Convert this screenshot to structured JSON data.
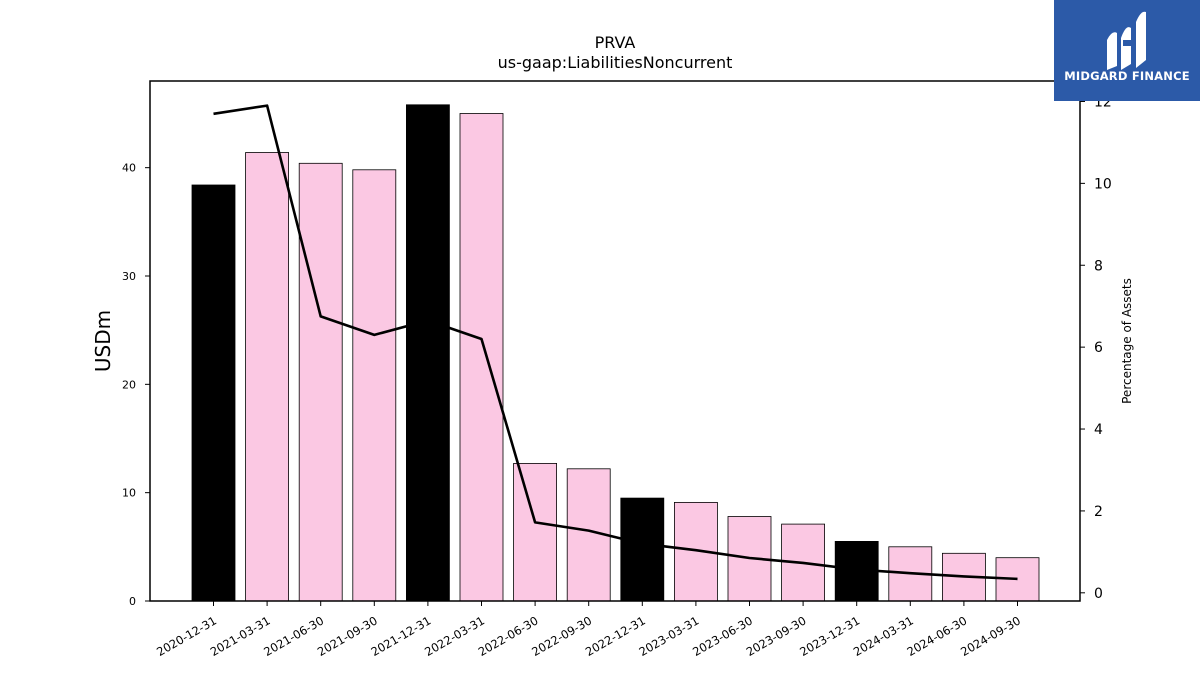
{
  "brand": {
    "name": "MIDGARD FINANCE",
    "bg_color": "#2c5aa8"
  },
  "chart_data": {
    "type": "bar",
    "title": "PRVA",
    "subtitle": "us-gaap:LiabilitiesNoncurrent",
    "ylabel": "USDm",
    "y2label": "Percentage of Assets",
    "categories": [
      "2020-12-31",
      "2021-03-31",
      "2021-06-30",
      "2021-09-30",
      "2021-12-31",
      "2022-03-31",
      "2022-06-30",
      "2022-09-30",
      "2022-12-31",
      "2023-03-31",
      "2023-06-30",
      "2023-09-30",
      "2023-12-31",
      "2024-03-31",
      "2024-06-30",
      "2024-09-30"
    ],
    "series": [
      {
        "kind": "bar",
        "axis": "left",
        "values": [
          38.4,
          41.4,
          40.4,
          39.8,
          45.8,
          45.0,
          12.7,
          12.2,
          9.5,
          9.1,
          7.8,
          7.1,
          5.5,
          5.0,
          4.4,
          4.0
        ],
        "colors": [
          "#000000",
          "#fbc8e3",
          "#fbc8e3",
          "#fbc8e3",
          "#000000",
          "#fbc8e3",
          "#fbc8e3",
          "#fbc8e3",
          "#000000",
          "#fbc8e3",
          "#fbc8e3",
          "#fbc8e3",
          "#000000",
          "#fbc8e3",
          "#fbc8e3",
          "#fbc8e3"
        ]
      },
      {
        "kind": "line",
        "axis": "right",
        "color": "#000000",
        "values": [
          11.7,
          11.9,
          6.75,
          6.3,
          6.65,
          6.2,
          1.72,
          1.52,
          1.2,
          1.04,
          0.85,
          0.73,
          0.57,
          0.48,
          0.4,
          0.34
        ]
      }
    ],
    "ylim": [
      0,
      48
    ],
    "y2lim": [
      -0.2,
      12.5
    ],
    "yticks": [
      0,
      10,
      20,
      30,
      40
    ],
    "y2ticks": [
      0,
      2,
      4,
      6,
      8,
      10,
      12
    ],
    "grid": false
  }
}
